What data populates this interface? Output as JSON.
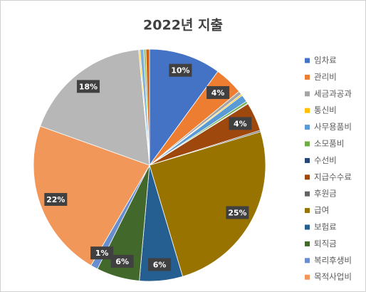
{
  "chart_data": {
    "type": "pie",
    "title": "2022년 지출",
    "categories": [
      "임차료",
      "관리비",
      "세금과공과",
      "통신비",
      "사무용품비",
      "소모품비",
      "수선비",
      "지급수수료",
      "후원금",
      "급여",
      "보험료",
      "퇴직금",
      "복리후생비",
      "목적사업비",
      null,
      null,
      null,
      null,
      null
    ],
    "values": [
      10,
      4,
      0.5,
      0.2,
      1,
      0.3,
      0.1,
      4,
      0.2,
      25,
      6,
      6,
      1,
      22,
      18,
      0.2,
      0.5,
      0.3,
      0.5
    ],
    "value_labels": [
      "10%",
      "4%",
      null,
      null,
      null,
      null,
      null,
      "4%",
      null,
      "25%",
      "6%",
      "6%",
      "1%",
      "22%",
      "18%",
      null,
      null,
      null,
      null
    ],
    "colors": [
      "#4472c4",
      "#ed7d31",
      "#a5a5a5",
      "#ffc000",
      "#5b9bd5",
      "#70ad47",
      "#264478",
      "#9e480e",
      "#636363",
      "#997300",
      "#255e91",
      "#43682b",
      "#698ed0",
      "#f1975a",
      "#b7b7b7",
      "#ffcd33",
      "#7cafdd",
      "#8cc168",
      "#d26012"
    ],
    "legend": "right"
  }
}
